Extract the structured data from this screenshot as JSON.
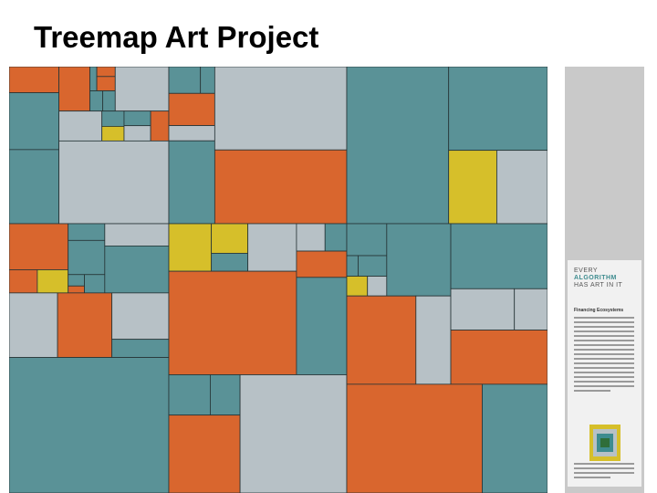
{
  "header": {
    "title": "Treemap Art Project"
  },
  "poster": {
    "logo": [
      "EVERY",
      "ALGORITHM",
      "HAS ART IN IT"
    ],
    "heading": "Financing Ecosystems"
  }
}
